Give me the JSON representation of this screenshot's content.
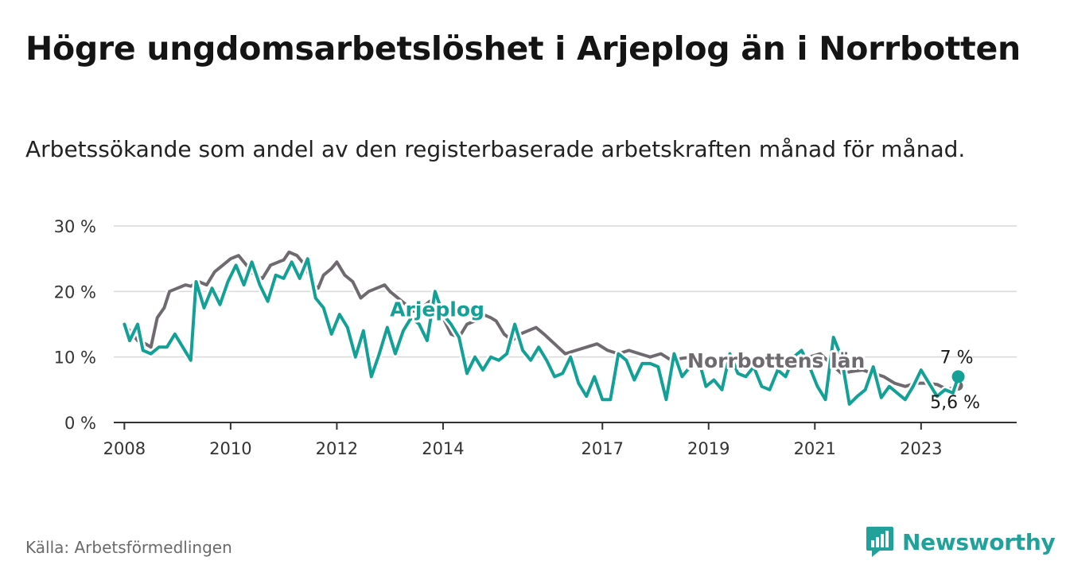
{
  "header": {
    "title": "Högre ungdomsarbetslöshet i Arjeplog än i Norrbotten",
    "subtitle": "Arbetssökande som andel av den registerbaserade arbetskraften månad för månad."
  },
  "footer": {
    "source": "Källa: Arbetsförmedlingen",
    "brand": "Newsworthy"
  },
  "colors": {
    "arjeplog": "#13a096",
    "norrbotten": "#6e6a6f",
    "grid": "#d9d9d9",
    "axis": "#333333",
    "brand": "#21a199"
  },
  "chart_data": {
    "type": "line",
    "title": "Högre ungdomsarbetslöshet i Arjeplog än i Norrbotten",
    "xlabel": "",
    "ylabel": "",
    "ylim": [
      0,
      30
    ],
    "xlim": [
      2007.8,
      2024.8
    ],
    "yticks": [
      0,
      10,
      20,
      30
    ],
    "ytick_labels": [
      "0 %",
      "10 %",
      "20 %",
      "30 %"
    ],
    "xticks": [
      2008,
      2010,
      2012,
      2014,
      2017,
      2019,
      2021,
      2023
    ],
    "xtick_labels": [
      "2008",
      "2010",
      "2012",
      "2014",
      "2017",
      "2019",
      "2021",
      "2023"
    ],
    "series": [
      {
        "name": "Norrbottens län",
        "key": "norrbotten",
        "end_label": "5,6 %",
        "x": [
          2008.0,
          2008.25,
          2008.4,
          2008.5,
          2008.62,
          2008.75,
          2008.85,
          2009.0,
          2009.15,
          2009.25,
          2009.4,
          2009.55,
          2009.7,
          2009.85,
          2010.0,
          2010.15,
          2010.3,
          2010.45,
          2010.6,
          2010.75,
          2010.9,
          2011.0,
          2011.1,
          2011.25,
          2011.4,
          2011.55,
          2011.65,
          2011.75,
          2011.9,
          2012.0,
          2012.15,
          2012.3,
          2012.45,
          2012.6,
          2012.75,
          2012.9,
          2013.0,
          2013.15,
          2013.3,
          2013.45,
          2013.6,
          2013.75,
          2013.85,
          2014.0,
          2014.15,
          2014.3,
          2014.45,
          2014.6,
          2014.75,
          2014.9,
          2015.0,
          2015.15,
          2015.3,
          2015.45,
          2015.6,
          2015.75,
          2015.9,
          2016.1,
          2016.3,
          2016.5,
          2016.7,
          2016.9,
          2017.1,
          2017.3,
          2017.5,
          2017.7,
          2017.9,
          2018.1,
          2018.3,
          2018.5,
          2018.7,
          2018.9,
          2019.1,
          2019.3,
          2019.5,
          2019.7,
          2019.9,
          2020.1,
          2020.3,
          2020.5,
          2020.7,
          2020.9,
          2021.1,
          2021.3,
          2021.5,
          2021.7,
          2021.9,
          2022.1,
          2022.3,
          2022.5,
          2022.7,
          2022.9,
          2023.1,
          2023.3,
          2023.5,
          2023.7
        ],
        "values": [
          15.0,
          12.5,
          12.0,
          11.5,
          16.0,
          17.5,
          20.0,
          20.5,
          21.0,
          20.8,
          21.5,
          21.0,
          23.0,
          24.0,
          25.0,
          25.5,
          24.0,
          22.5,
          22.0,
          24.0,
          24.5,
          24.8,
          26.0,
          25.5,
          24.0,
          21.0,
          20.5,
          22.5,
          23.5,
          24.5,
          22.5,
          21.5,
          19.0,
          20.0,
          20.5,
          21.0,
          20.0,
          19.0,
          18.0,
          17.0,
          17.5,
          18.5,
          17.0,
          16.0,
          13.5,
          13.0,
          15.0,
          15.5,
          16.5,
          16.0,
          15.5,
          13.5,
          12.5,
          13.5,
          14.0,
          14.5,
          13.5,
          12.0,
          10.5,
          11.0,
          11.5,
          12.0,
          11.0,
          10.5,
          11.0,
          10.5,
          10.0,
          10.5,
          9.5,
          9.8,
          10.0,
          9.5,
          9.0,
          10.0,
          9.5,
          9.0,
          9.0,
          10.0,
          10.0,
          9.5,
          10.5,
          10.0,
          10.5,
          9.0,
          7.5,
          7.8,
          8.0,
          7.5,
          7.0,
          6.0,
          5.5,
          6.0,
          6.0,
          5.8,
          5.0,
          5.6
        ]
      },
      {
        "name": "Arjeplog",
        "key": "arjeplog",
        "end_label": "7 %",
        "x": [
          2008.0,
          2008.1,
          2008.25,
          2008.35,
          2008.5,
          2008.65,
          2008.8,
          2008.95,
          2009.1,
          2009.25,
          2009.35,
          2009.5,
          2009.65,
          2009.8,
          2009.95,
          2010.1,
          2010.25,
          2010.4,
          2010.55,
          2010.7,
          2010.85,
          2011.0,
          2011.15,
          2011.3,
          2011.45,
          2011.6,
          2011.75,
          2011.9,
          2012.05,
          2012.2,
          2012.35,
          2012.5,
          2012.65,
          2012.8,
          2012.95,
          2013.1,
          2013.25,
          2013.4,
          2013.55,
          2013.7,
          2013.85,
          2014.0,
          2014.15,
          2014.3,
          2014.45,
          2014.6,
          2014.75,
          2014.9,
          2015.05,
          2015.2,
          2015.35,
          2015.5,
          2015.65,
          2015.8,
          2015.95,
          2016.1,
          2016.25,
          2016.4,
          2016.55,
          2016.7,
          2016.85,
          2017.0,
          2017.15,
          2017.3,
          2017.45,
          2017.6,
          2017.75,
          2017.9,
          2018.05,
          2018.2,
          2018.35,
          2018.5,
          2018.65,
          2018.8,
          2018.95,
          2019.1,
          2019.25,
          2019.4,
          2019.55,
          2019.7,
          2019.85,
          2020.0,
          2020.15,
          2020.3,
          2020.45,
          2020.6,
          2020.75,
          2020.9,
          2021.05,
          2021.2,
          2021.35,
          2021.5,
          2021.65,
          2021.8,
          2021.95,
          2022.1,
          2022.25,
          2022.4,
          2022.55,
          2022.7,
          2022.85,
          2023.0,
          2023.15,
          2023.3,
          2023.45,
          2023.6,
          2023.7
        ],
        "values": [
          15.0,
          12.5,
          15.0,
          11.0,
          10.5,
          11.5,
          11.5,
          13.5,
          11.5,
          9.5,
          21.5,
          17.5,
          20.5,
          18.0,
          21.5,
          24.0,
          21.0,
          24.5,
          21.0,
          18.5,
          22.5,
          22.0,
          24.5,
          22.0,
          25.0,
          19.0,
          17.5,
          13.5,
          16.5,
          14.5,
          10.0,
          14.0,
          7.0,
          10.5,
          14.5,
          10.5,
          14.0,
          16.0,
          15.0,
          12.5,
          20.0,
          16.5,
          15.0,
          13.0,
          7.5,
          10.0,
          8.0,
          10.0,
          9.5,
          10.5,
          15.0,
          11.0,
          9.5,
          11.5,
          9.5,
          7.0,
          7.5,
          10.0,
          6.0,
          4.0,
          7.0,
          3.5,
          3.5,
          10.5,
          9.5,
          6.5,
          9.0,
          9.0,
          8.5,
          3.5,
          10.5,
          7.0,
          8.5,
          10.0,
          5.5,
          6.5,
          5.0,
          10.5,
          7.5,
          7.0,
          8.5,
          5.5,
          5.0,
          8.0,
          7.0,
          10.0,
          11.0,
          8.5,
          5.5,
          3.5,
          13.0,
          10.0,
          2.8,
          4.0,
          5.0,
          8.5,
          3.8,
          5.5,
          4.5,
          3.5,
          5.5,
          8.0,
          6.0,
          4.0,
          5.0,
          4.5,
          7.0
        ]
      }
    ],
    "annotations": [
      {
        "text": "Arjeplog",
        "series": "arjeplog",
        "x": 2013.0,
        "y": 16.2
      },
      {
        "text": "Norrbottens län",
        "series": "norrbotten",
        "x": 2018.6,
        "y": 8.4
      }
    ]
  }
}
